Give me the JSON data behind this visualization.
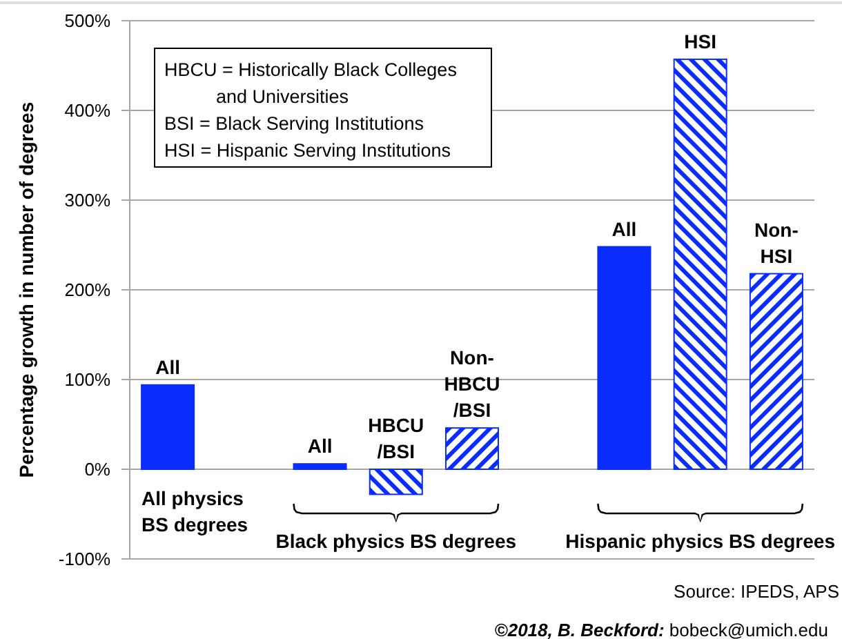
{
  "chart_data": {
    "type": "bar",
    "ylabel": "Percentage growth in number of degrees",
    "categories": [
      "All",
      null,
      "All",
      "HBCU\n/BSI",
      "Non-\nHBCU\n/BSI",
      null,
      "All",
      "HSI",
      "Non-\nHSI"
    ],
    "series": [
      {
        "color": "#0a2cff",
        "values": [
          94,
          null,
          6,
          null,
          null,
          null,
          248,
          null,
          null
        ]
      },
      {
        "color": "#0a2cff",
        "values": [
          null,
          null,
          null,
          -28,
          null,
          null,
          null,
          457,
          null
        ]
      },
      {
        "color": "#0a2cff",
        "values": [
          null,
          null,
          null,
          null,
          46,
          null,
          null,
          null,
          218
        ]
      }
    ],
    "ylim": [
      -100,
      500
    ],
    "yticks": [
      {
        "value": -100,
        "label": "-100%"
      },
      {
        "value": 0,
        "label": "0%"
      },
      {
        "value": 100,
        "label": "100%"
      },
      {
        "value": 200,
        "label": "200%"
      },
      {
        "value": 300,
        "label": "300%"
      },
      {
        "value": 400,
        "label": "400%"
      },
      {
        "value": 500,
        "label": "500%"
      }
    ],
    "grid": "y",
    "annotations": [
      "All physics\nBS degrees",
      "Black physics BS degrees",
      "Hispanic physics BS degrees",
      "HBCU = Historically Black Colleges\n          and Universities\nBSI = Black Serving Institutions\nHSI = Hispanic Serving Institutions",
      "Source: IPEDS, APS",
      "©2018, B. Beckford: bobeck@umich.edu"
    ]
  }
}
